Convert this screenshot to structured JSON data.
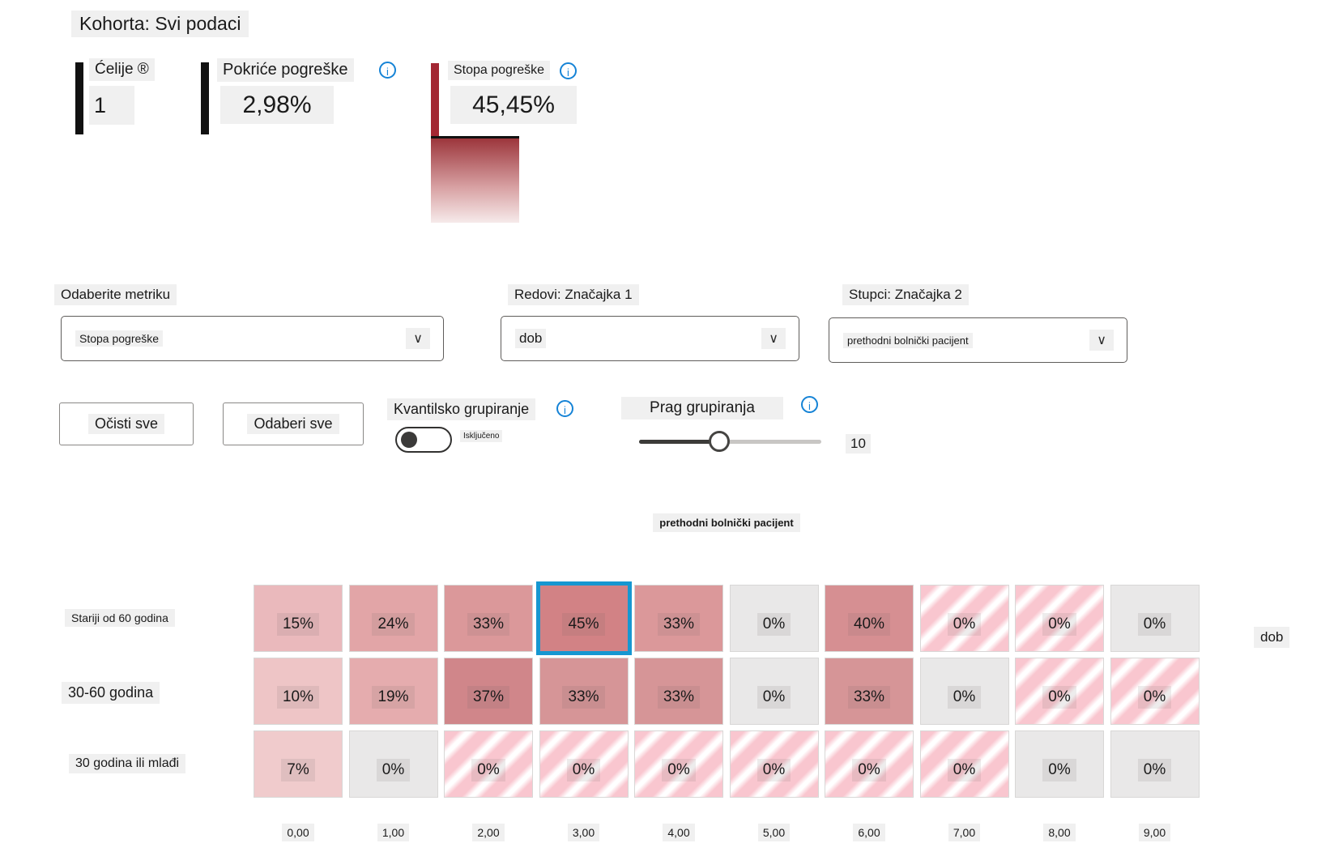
{
  "cohort_title": "Kohorta: Svi podaci",
  "stats": {
    "cells": {
      "label": "Ćelije ®",
      "value": "1"
    },
    "coverage": {
      "label": "Pokriće pogreške",
      "value": "2,98%"
    },
    "rate": {
      "label": "Stopa pogreške",
      "value": "45,45%"
    }
  },
  "controls": {
    "metric": {
      "label": "Odaberite metriku",
      "value": "Stopa pogreške"
    },
    "rows_feature": {
      "label": "Redovi: Značajka 1",
      "value": "dob"
    },
    "cols_feature": {
      "label": "Stupci: Značajka 2",
      "value": "prethodni bolnički pacijent"
    },
    "clear_all_label": "Očisti sve",
    "select_all_label": "Odaberi sve",
    "quantile_binning": {
      "label": "Kvantilsko grupiranje",
      "state": "Isključeno"
    },
    "binning_threshold": {
      "label": "Prag grupiranja",
      "value": "10"
    }
  },
  "icons": {
    "chevron_down": "∨",
    "info": "i"
  },
  "colors": {
    "selection_border": "#1697d1",
    "info_blue": "#1583d6",
    "stat_bar_black": "#111111",
    "stat_bar_red": "#a32733",
    "zero_cell_gray": "#e9e8e8",
    "stripe_pink": "#f9c6cf"
  },
  "heatmap": {
    "x_axis_label": "prethodni bolnički pacijent",
    "y_axis_label": "dob",
    "columns": [
      "0,00",
      "1,00",
      "2,00",
      "3,00",
      "4,00",
      "5,00",
      "6,00",
      "7,00",
      "8,00",
      "9,00"
    ],
    "rows": [
      {
        "label": "Stariji od 60 godina",
        "cells": [
          {
            "text": "15%",
            "type": "fill",
            "color": "#eab9bc"
          },
          {
            "text": "24%",
            "type": "fill",
            "color": "#e2a5a7"
          },
          {
            "text": "33%",
            "type": "fill",
            "color": "#db989a"
          },
          {
            "text": "45%",
            "type": "fill",
            "color": "#d28285",
            "selected": true
          },
          {
            "text": "33%",
            "type": "fill",
            "color": "#db989a"
          },
          {
            "text": "0%",
            "type": "zero"
          },
          {
            "text": "40%",
            "type": "fill",
            "color": "#d68f92"
          },
          {
            "text": "0%",
            "type": "striped"
          },
          {
            "text": "0%",
            "type": "striped"
          },
          {
            "text": "0%",
            "type": "zero"
          }
        ]
      },
      {
        "label": "30-60 godina",
        "cells": [
          {
            "text": "10%",
            "type": "fill",
            "color": "#eec5c6"
          },
          {
            "text": "19%",
            "type": "fill",
            "color": "#e5acae"
          },
          {
            "text": "37%",
            "type": "fill",
            "color": "#d0868a"
          },
          {
            "text": "33%",
            "type": "fill",
            "color": "#d69597"
          },
          {
            "text": "33%",
            "type": "fill",
            "color": "#d69597"
          },
          {
            "text": "0%",
            "type": "zero"
          },
          {
            "text": "33%",
            "type": "fill",
            "color": "#d69597"
          },
          {
            "text": "0%",
            "type": "zero"
          },
          {
            "text": "0%",
            "type": "striped"
          },
          {
            "text": "0%",
            "type": "striped"
          }
        ]
      },
      {
        "label": "30 godina ili mlađi",
        "cells": [
          {
            "text": "7%",
            "type": "fill",
            "color": "#f0cbcc"
          },
          {
            "text": "0%",
            "type": "zero"
          },
          {
            "text": "0%",
            "type": "striped"
          },
          {
            "text": "0%",
            "type": "striped"
          },
          {
            "text": "0%",
            "type": "striped"
          },
          {
            "text": "0%",
            "type": "striped"
          },
          {
            "text": "0%",
            "type": "striped"
          },
          {
            "text": "0%",
            "type": "striped"
          },
          {
            "text": "0%",
            "type": "zero"
          },
          {
            "text": "0%",
            "type": "zero"
          }
        ]
      }
    ]
  }
}
